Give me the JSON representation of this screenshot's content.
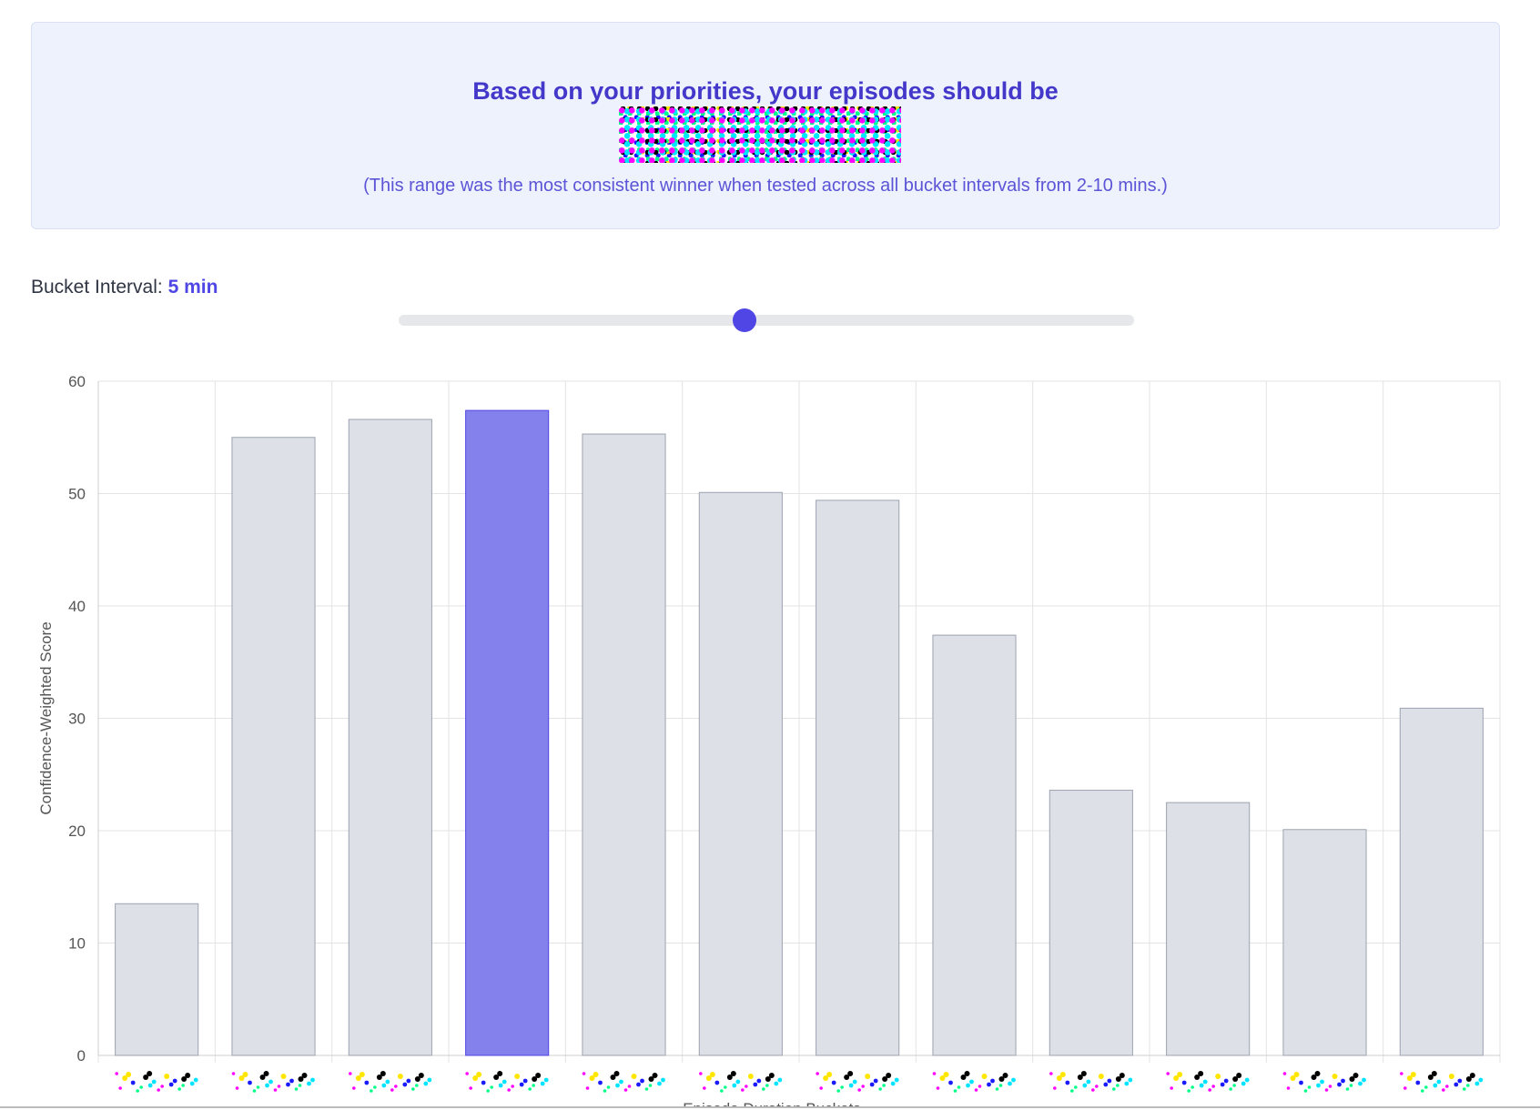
{
  "banner": {
    "title": "Based on your priorities, your episodes should be",
    "subtitle": "(This range was the most consistent winner when tested across all bucket intervals from 2-10 mins.)"
  },
  "bucket": {
    "label": "Bucket Interval:",
    "value_label": "5 min",
    "slider_min": 2,
    "slider_max": 10,
    "slider_value": 5
  },
  "colors": {
    "accent": "#4f46e5",
    "highlight_bar": "#8480ec",
    "default_bar": "#dde0e6",
    "default_bar_border": "#9ca3af"
  },
  "chart_data": {
    "type": "bar",
    "ylabel": "Confidence-Weighted Score",
    "xlabel": "Episode Duration Buckets",
    "ylim": [
      0,
      60
    ],
    "yticks": [
      0,
      10,
      20,
      30,
      40,
      50,
      60
    ],
    "grid": true,
    "highlight_index": 3,
    "values": [
      13.5,
      55,
      56.6,
      57.4,
      55.3,
      50.1,
      49.4,
      37.4,
      23.6,
      22.5,
      20.1,
      30.9
    ]
  }
}
